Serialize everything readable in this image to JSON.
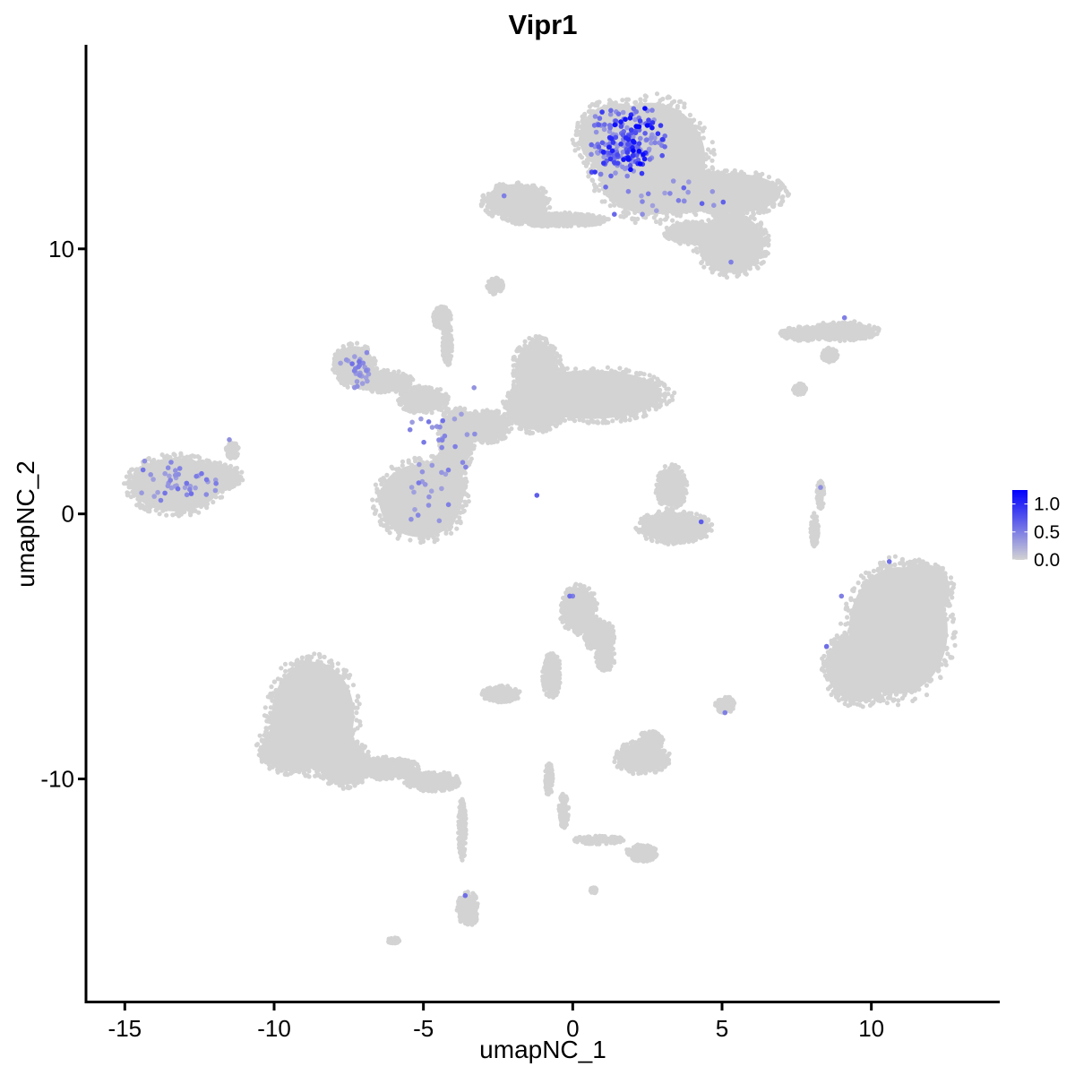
{
  "chart_data": {
    "type": "scatter",
    "title": "Vipr1",
    "xlabel": "umapNC_1",
    "ylabel": "umapNC_2",
    "xlim": [
      -16.3,
      14.3
    ],
    "ylim": [
      -18.4,
      17.7
    ],
    "x_ticks": [
      -15,
      -10,
      -5,
      0,
      5,
      10
    ],
    "x_tick_labels": [
      "-15",
      "-10",
      "-5",
      "0",
      "5",
      "10"
    ],
    "y_ticks": [
      -10,
      0,
      10
    ],
    "y_tick_labels": [
      "-10",
      "0",
      "10"
    ],
    "grid": false,
    "legend_position": "right",
    "colorbar": {
      "low_color": "#d3d3d3",
      "high_color": "#0000ff",
      "range": [
        0,
        1.25
      ],
      "ticks": [
        0.0,
        0.5,
        1.0
      ],
      "tick_labels": [
        "0.0",
        "0.5",
        "1.0"
      ]
    },
    "background_color": "#d3d3d3",
    "clusters": [
      {
        "x": 2.6,
        "y": 13.4,
        "rx": 2.0,
        "ry": 2.3
      },
      {
        "x": 1.5,
        "y": 14.2,
        "rx": 1.4,
        "ry": 1.4
      },
      {
        "x": 3.5,
        "y": 12.2,
        "rx": 2.2,
        "ry": 0.9
      },
      {
        "x": 5.4,
        "y": 12.1,
        "rx": 1.7,
        "ry": 0.8
      },
      {
        "x": 5.3,
        "y": 10.2,
        "rx": 1.2,
        "ry": 1.2
      },
      {
        "x": -1.9,
        "y": 11.8,
        "rx": 1.1,
        "ry": 0.7
      },
      {
        "x": -0.5,
        "y": 11.1,
        "rx": 1.6,
        "ry": 0.25
      },
      {
        "x": 3.9,
        "y": 10.6,
        "rx": 0.8,
        "ry": 0.4
      },
      {
        "x": -2.6,
        "y": 8.6,
        "rx": 0.25,
        "ry": 0.3
      },
      {
        "x": -4.4,
        "y": 7.4,
        "rx": 0.3,
        "ry": 0.4
      },
      {
        "x": -4.2,
        "y": 6.4,
        "rx": 0.15,
        "ry": 0.8
      },
      {
        "x": 9.1,
        "y": 6.9,
        "rx": 1.1,
        "ry": 0.35
      },
      {
        "x": 7.8,
        "y": 6.8,
        "rx": 0.8,
        "ry": 0.25
      },
      {
        "x": 8.6,
        "y": 6.0,
        "rx": 0.25,
        "ry": 0.25
      },
      {
        "x": 7.6,
        "y": 4.7,
        "rx": 0.2,
        "ry": 0.2
      },
      {
        "x": -1.2,
        "y": 5.3,
        "rx": 0.8,
        "ry": 1.3
      },
      {
        "x": 0.6,
        "y": 4.5,
        "rx": 2.6,
        "ry": 1.0
      },
      {
        "x": -1.3,
        "y": 4.0,
        "rx": 1.0,
        "ry": 0.9
      },
      {
        "x": -2.9,
        "y": 3.3,
        "rx": 0.8,
        "ry": 0.6
      },
      {
        "x": -3.9,
        "y": 2.8,
        "rx": 0.6,
        "ry": 1.2
      },
      {
        "x": -7.3,
        "y": 5.6,
        "rx": 0.7,
        "ry": 0.8
      },
      {
        "x": -6.3,
        "y": 5.0,
        "rx": 0.9,
        "ry": 0.4
      },
      {
        "x": -5.0,
        "y": 4.3,
        "rx": 0.8,
        "ry": 0.5
      },
      {
        "x": -5.1,
        "y": 0.5,
        "rx": 1.5,
        "ry": 1.5
      },
      {
        "x": -4.4,
        "y": 1.2,
        "rx": 0.8,
        "ry": 1.0
      },
      {
        "x": -13.3,
        "y": 1.1,
        "rx": 1.6,
        "ry": 1.1
      },
      {
        "x": -12.0,
        "y": 1.4,
        "rx": 0.9,
        "ry": 0.5
      },
      {
        "x": -11.4,
        "y": 2.4,
        "rx": 0.2,
        "ry": 0.3
      },
      {
        "x": 3.3,
        "y": 1.0,
        "rx": 0.5,
        "ry": 0.8
      },
      {
        "x": 3.4,
        "y": -0.5,
        "rx": 1.2,
        "ry": 0.6
      },
      {
        "x": 8.3,
        "y": 0.7,
        "rx": 0.12,
        "ry": 0.5
      },
      {
        "x": 8.1,
        "y": -0.6,
        "rx": 0.12,
        "ry": 0.6
      },
      {
        "x": 10.9,
        "y": -4.4,
        "rx": 1.8,
        "ry": 2.6
      },
      {
        "x": 9.6,
        "y": -5.8,
        "rx": 1.2,
        "ry": 1.4
      },
      {
        "x": 11.7,
        "y": -2.8,
        "rx": 1.0,
        "ry": 1.0
      },
      {
        "x": 0.2,
        "y": -3.6,
        "rx": 0.6,
        "ry": 0.9
      },
      {
        "x": 0.9,
        "y": -4.6,
        "rx": 0.5,
        "ry": 0.6
      },
      {
        "x": 1.1,
        "y": -5.4,
        "rx": 0.3,
        "ry": 0.5
      },
      {
        "x": -0.7,
        "y": -6.1,
        "rx": 0.3,
        "ry": 0.8
      },
      {
        "x": -2.4,
        "y": -6.8,
        "rx": 0.6,
        "ry": 0.3
      },
      {
        "x": 5.1,
        "y": -7.2,
        "rx": 0.3,
        "ry": 0.3
      },
      {
        "x": 2.3,
        "y": -9.2,
        "rx": 0.9,
        "ry": 0.6
      },
      {
        "x": 2.6,
        "y": -8.6,
        "rx": 0.4,
        "ry": 0.4
      },
      {
        "x": -8.7,
        "y": -7.6,
        "rx": 1.5,
        "ry": 2.2
      },
      {
        "x": -9.4,
        "y": -8.8,
        "rx": 1.1,
        "ry": 1.0
      },
      {
        "x": -7.7,
        "y": -9.4,
        "rx": 0.9,
        "ry": 0.9
      },
      {
        "x": -6.2,
        "y": -9.6,
        "rx": 1.0,
        "ry": 0.4
      },
      {
        "x": -4.7,
        "y": -10.1,
        "rx": 0.9,
        "ry": 0.35
      },
      {
        "x": -3.7,
        "y": -11.9,
        "rx": 0.12,
        "ry": 1.1
      },
      {
        "x": -3.5,
        "y": -14.9,
        "rx": 0.35,
        "ry": 0.6
      },
      {
        "x": -6.0,
        "y": -16.1,
        "rx": 0.2,
        "ry": 0.1
      },
      {
        "x": -0.8,
        "y": -10.0,
        "rx": 0.12,
        "ry": 0.6
      },
      {
        "x": -0.3,
        "y": -11.2,
        "rx": 0.15,
        "ry": 0.6
      },
      {
        "x": 0.9,
        "y": -12.3,
        "rx": 0.8,
        "ry": 0.15
      },
      {
        "x": 2.3,
        "y": -12.8,
        "rx": 0.5,
        "ry": 0.3
      },
      {
        "x": 0.7,
        "y": -14.2,
        "rx": 0.1,
        "ry": 0.1
      }
    ],
    "expressing_groups": [
      {
        "x": 1.8,
        "y": 14.0,
        "rx": 1.3,
        "ry": 1.3,
        "n": 230,
        "min": 0.35,
        "max": 1.25
      },
      {
        "x": 3.0,
        "y": 11.9,
        "rx": 2.2,
        "ry": 0.7,
        "n": 22,
        "min": 0.3,
        "max": 0.7
      },
      {
        "x": -7.2,
        "y": 5.3,
        "rx": 0.6,
        "ry": 0.8,
        "n": 30,
        "min": 0.3,
        "max": 0.6
      },
      {
        "x": -4.3,
        "y": 3.3,
        "rx": 1.3,
        "ry": 1.7,
        "n": 24,
        "min": 0.3,
        "max": 0.6
      },
      {
        "x": -4.9,
        "y": 0.8,
        "rx": 1.2,
        "ry": 1.2,
        "n": 18,
        "min": 0.3,
        "max": 0.6
      },
      {
        "x": -13.2,
        "y": 1.2,
        "rx": 1.3,
        "ry": 0.8,
        "n": 42,
        "min": 0.3,
        "max": 0.6
      }
    ],
    "expressing_points": [
      {
        "x": 4.3,
        "y": -0.3,
        "v": 0.7
      },
      {
        "x": 8.3,
        "y": 1.0,
        "v": 0.4
      },
      {
        "x": 9.1,
        "y": 7.4,
        "v": 0.5
      },
      {
        "x": 9.0,
        "y": -3.1,
        "v": 0.5
      },
      {
        "x": 8.5,
        "y": -5.0,
        "v": 0.6
      },
      {
        "x": 10.6,
        "y": -1.8,
        "v": 0.6
      },
      {
        "x": -0.1,
        "y": -3.1,
        "v": 0.6
      },
      {
        "x": 0.0,
        "y": -3.1,
        "v": 0.5
      },
      {
        "x": 5.1,
        "y": -7.5,
        "v": 0.5
      },
      {
        "x": -3.6,
        "y": -14.4,
        "v": 0.6
      },
      {
        "x": -1.2,
        "y": 0.7,
        "v": 0.7
      },
      {
        "x": -2.3,
        "y": 12.0,
        "v": 0.5
      },
      {
        "x": 5.3,
        "y": 9.5,
        "v": 0.5
      },
      {
        "x": -11.5,
        "y": 2.8,
        "v": 0.4
      }
    ]
  }
}
